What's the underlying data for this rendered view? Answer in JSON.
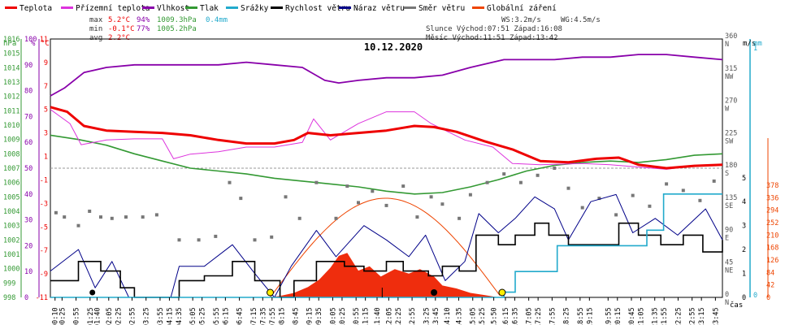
{
  "date": "10.12.2020",
  "legend": [
    {
      "label": "Teplota",
      "color": "#ee0000"
    },
    {
      "label": "Přízemní teplota",
      "color": "#dd33dd"
    },
    {
      "label": "Vlhkost",
      "color": "#8800aa"
    },
    {
      "label": "Tlak",
      "color": "#339933"
    },
    {
      "label": "Srážky",
      "color": "#22aacc"
    },
    {
      "label": "Rychlost větru",
      "color": "#000000"
    },
    {
      "label": "Náraz větru",
      "color": "#000088"
    },
    {
      "label": "Směr větru",
      "color": "#777777"
    },
    {
      "label": "Globální záření",
      "color": "#ee4400"
    }
  ],
  "stats": {
    "max_label": "max",
    "max_temp": "5.2°C",
    "max_hum": "94%",
    "max_press": "1009.3hPa",
    "max_rain": "0.4mm",
    "min_label": "min",
    "min_temp": "-0.1°C",
    "min_hum": "77%",
    "min_press": "1005.2hPa",
    "avg_label": "avg",
    "avg_temp": "2.2°C",
    "ws": "WS:3.2m/s",
    "wg": "WG:4.5m/s",
    "sun": "Slunce Východ:07:51  Západ:16:08",
    "moon": "Měsíc  Východ:11:51  Západ:13:42"
  },
  "axes": {
    "hpa_label": "hPa",
    "pct_label": "%",
    "degc_label": "°C",
    "ms_label": "m/s",
    "mm_label": "mm",
    "time_label": "čas",
    "hpa_ticks": [
      "998",
      "999",
      "1000",
      "1001",
      "1002",
      "1003",
      "1004",
      "1005",
      "1006",
      "1007",
      "1008",
      "1009",
      "1010",
      "1011",
      "1012",
      "1013",
      "1014",
      "1015",
      "1016"
    ],
    "pct_ticks": [
      "0",
      "10",
      "20",
      "30",
      "40",
      "50",
      "60",
      "70",
      "80",
      "90",
      "100"
    ],
    "temp_ticks": [
      "-11",
      "-9",
      "-7",
      "-5",
      "-3",
      "-1",
      "1",
      "3",
      "5",
      "7",
      "9",
      "11"
    ],
    "dir_ticks": [
      {
        "deg": "0",
        "lbl": "N"
      },
      {
        "deg": "45",
        "lbl": "NE"
      },
      {
        "deg": "90",
        "lbl": "E"
      },
      {
        "deg": "135",
        "lbl": "SE"
      },
      {
        "deg": "180",
        "lbl": "S"
      },
      {
        "deg": "225",
        "lbl": "SW"
      },
      {
        "deg": "270",
        "lbl": "W"
      },
      {
        "deg": "315",
        "lbl": "NW"
      },
      {
        "deg": "360",
        "lbl": "N"
      }
    ],
    "wind_ticks": [
      "0",
      "1",
      "2",
      "3",
      "4",
      "5"
    ],
    "rain_ticks": [
      "0",
      "1"
    ],
    "rad_ticks": [
      "0",
      "42",
      "84",
      "126",
      "168",
      "210",
      "252",
      "294",
      "336",
      "378"
    ],
    "time_ticks": [
      "00:10",
      "00:25",
      "00:55",
      "01:25",
      "01:40",
      "02:05",
      "02:25",
      "02:55",
      "03:25",
      "03:55",
      "04:15",
      "04:35",
      "05:05",
      "05:25",
      "05:55",
      "06:15",
      "06:45",
      "07:15",
      "07:35",
      "07:55",
      "08:15",
      "08:45",
      "09:15",
      "09:35",
      "10:05",
      "10:25",
      "10:55",
      "11:15",
      "11:40",
      "12:05",
      "12:25",
      "12:55",
      "13:25",
      "13:45",
      "14:10",
      "14:35",
      "15:05",
      "15:25",
      "15:50",
      "16:15",
      "16:35",
      "17:05",
      "17:25",
      "17:55",
      "18:25",
      "18:55",
      "19:15",
      "19:55",
      "20:15",
      "20:45",
      "21:05",
      "21:35",
      "21:55",
      "22:25",
      "22:55",
      "23:15",
      "23:45"
    ]
  },
  "chart_data": {
    "type": "line",
    "title": "10.12.2020",
    "x_unit": "hour",
    "series": [
      {
        "name": "Teplota",
        "unit": "°C",
        "points": [
          [
            0,
            5.2
          ],
          [
            0.6,
            4.8
          ],
          [
            1.2,
            3.6
          ],
          [
            2,
            3.2
          ],
          [
            3,
            3.1
          ],
          [
            4,
            3.0
          ],
          [
            5,
            2.8
          ],
          [
            6,
            2.4
          ],
          [
            7,
            2.1
          ],
          [
            8,
            2.1
          ],
          [
            8.7,
            2.4
          ],
          [
            9.2,
            3.0
          ],
          [
            10,
            2.8
          ],
          [
            11,
            3.0
          ],
          [
            12,
            3.2
          ],
          [
            13,
            3.6
          ],
          [
            13.7,
            3.5
          ],
          [
            14.5,
            3.1
          ],
          [
            15.5,
            2.3
          ],
          [
            16.5,
            1.6
          ],
          [
            17.5,
            0.6
          ],
          [
            18.5,
            0.5
          ],
          [
            19.5,
            0.8
          ],
          [
            20.3,
            0.9
          ],
          [
            21,
            0.3
          ],
          [
            22,
            0.0
          ],
          [
            23,
            0.2
          ],
          [
            24,
            0.3
          ]
        ]
      },
      {
        "name": "Přízemní teplota",
        "unit": "°C",
        "points": [
          [
            0,
            5.0
          ],
          [
            0.7,
            3.8
          ],
          [
            1.1,
            2.0
          ],
          [
            2,
            2.4
          ],
          [
            3,
            2.5
          ],
          [
            4,
            2.5
          ],
          [
            4.4,
            0.8
          ],
          [
            5,
            1.2
          ],
          [
            6,
            1.4
          ],
          [
            7,
            1.8
          ],
          [
            8,
            1.8
          ],
          [
            9,
            2.2
          ],
          [
            9.4,
            4.2
          ],
          [
            10,
            2.4
          ],
          [
            11,
            3.8
          ],
          [
            12,
            4.8
          ],
          [
            13,
            4.8
          ],
          [
            13.6,
            3.8
          ],
          [
            14.8,
            2.4
          ],
          [
            15.8,
            1.8
          ],
          [
            16.5,
            0.4
          ],
          [
            17.5,
            0.3
          ],
          [
            19,
            0.4
          ],
          [
            20,
            0.3
          ],
          [
            21,
            0.1
          ],
          [
            22,
            -0.1
          ],
          [
            23,
            0.2
          ],
          [
            24,
            0.3
          ]
        ]
      },
      {
        "name": "Vlhkost",
        "unit": "%",
        "points": [
          [
            0,
            78
          ],
          [
            0.5,
            81
          ],
          [
            1.2,
            87
          ],
          [
            2,
            89
          ],
          [
            3,
            90
          ],
          [
            4,
            90
          ],
          [
            5,
            90
          ],
          [
            6,
            90
          ],
          [
            7,
            91
          ],
          [
            8,
            90
          ],
          [
            9,
            89
          ],
          [
            9.8,
            84
          ],
          [
            10.3,
            83
          ],
          [
            11,
            84
          ],
          [
            12,
            85
          ],
          [
            13,
            85
          ],
          [
            14,
            86
          ],
          [
            15,
            89
          ],
          [
            16.2,
            92
          ],
          [
            17,
            92
          ],
          [
            18,
            92
          ],
          [
            19,
            93
          ],
          [
            20,
            93
          ],
          [
            21,
            94
          ],
          [
            22,
            94
          ],
          [
            23,
            93
          ],
          [
            24,
            92
          ]
        ]
      },
      {
        "name": "Tlak",
        "unit": "hPa",
        "points": [
          [
            0,
            1009.3
          ],
          [
            1,
            1009.0
          ],
          [
            2,
            1008.6
          ],
          [
            3,
            1008.0
          ],
          [
            4,
            1007.5
          ],
          [
            5,
            1007.0
          ],
          [
            6,
            1006.8
          ],
          [
            7,
            1006.6
          ],
          [
            8,
            1006.3
          ],
          [
            9,
            1006.1
          ],
          [
            10,
            1005.9
          ],
          [
            11,
            1005.7
          ],
          [
            12,
            1005.4
          ],
          [
            13,
            1005.2
          ],
          [
            14,
            1005.3
          ],
          [
            15,
            1005.7
          ],
          [
            16,
            1006.2
          ],
          [
            17,
            1006.8
          ],
          [
            18,
            1007.2
          ],
          [
            19,
            1007.4
          ],
          [
            20,
            1007.5
          ],
          [
            21,
            1007.4
          ],
          [
            22,
            1007.6
          ],
          [
            23,
            1007.9
          ],
          [
            24,
            1008.0
          ]
        ]
      },
      {
        "name": "Srážky",
        "unit": "mm",
        "points": [
          [
            0,
            0
          ],
          [
            16.1,
            0
          ],
          [
            16.2,
            0.02
          ],
          [
            16.6,
            0.1
          ],
          [
            17.7,
            0.1
          ],
          [
            18.1,
            0.2
          ],
          [
            20.3,
            0.2
          ],
          [
            21.3,
            0.26
          ],
          [
            21.9,
            0.4
          ],
          [
            24,
            0.4
          ]
        ]
      },
      {
        "name": "Rychlost větru",
        "unit": "m/s",
        "points": [
          [
            0,
            0.7
          ],
          [
            1,
            1.5
          ],
          [
            1.8,
            1.1
          ],
          [
            2.5,
            0.4
          ],
          [
            3,
            0
          ],
          [
            4.3,
            0
          ],
          [
            4.6,
            0.7
          ],
          [
            5.5,
            0.9
          ],
          [
            6.5,
            1.5
          ],
          [
            7.3,
            0.7
          ],
          [
            8.2,
            0
          ],
          [
            8.7,
            0.7
          ],
          [
            9.5,
            1.5
          ],
          [
            10.5,
            1.3
          ],
          [
            11.2,
            1.1
          ],
          [
            12,
            1.5
          ],
          [
            12.6,
            1.1
          ],
          [
            13.5,
            0.9
          ],
          [
            14,
            1.3
          ],
          [
            14.6,
            1.1
          ],
          [
            15.2,
            2.6
          ],
          [
            16,
            2.2
          ],
          [
            16.6,
            2.6
          ],
          [
            17.3,
            3.1
          ],
          [
            17.8,
            2.6
          ],
          [
            18.5,
            2.2
          ],
          [
            19.5,
            2.2
          ],
          [
            20.3,
            3.1
          ],
          [
            21,
            2.6
          ],
          [
            21.8,
            2.2
          ],
          [
            22.6,
            2.6
          ],
          [
            23.3,
            1.9
          ],
          [
            24,
            2.4
          ]
        ]
      },
      {
        "name": "Náraz větru",
        "unit": "m/s",
        "points": [
          [
            0,
            1.1
          ],
          [
            1,
            2.0
          ],
          [
            1.6,
            0.4
          ],
          [
            2.2,
            1.5
          ],
          [
            2.8,
            0
          ],
          [
            4.3,
            0
          ],
          [
            4.6,
            1.3
          ],
          [
            5.5,
            1.3
          ],
          [
            6.5,
            2.2
          ],
          [
            7.3,
            1.0
          ],
          [
            8.0,
            0
          ],
          [
            8.6,
            1.3
          ],
          [
            9.5,
            2.8
          ],
          [
            10.2,
            1.7
          ],
          [
            11.2,
            3.0
          ],
          [
            12,
            2.4
          ],
          [
            12.8,
            1.7
          ],
          [
            13.4,
            2.6
          ],
          [
            14.1,
            0.7
          ],
          [
            14.8,
            1.5
          ],
          [
            15.3,
            3.5
          ],
          [
            16,
            2.7
          ],
          [
            16.6,
            3.3
          ],
          [
            17.3,
            4.2
          ],
          [
            18,
            3.7
          ],
          [
            18.5,
            2.4
          ],
          [
            19.3,
            4.0
          ],
          [
            20.2,
            4.3
          ],
          [
            20.8,
            2.7
          ],
          [
            21.6,
            3.3
          ],
          [
            22.4,
            2.6
          ],
          [
            23.4,
            3.7
          ],
          [
            24,
            2.4
          ]
        ]
      },
      {
        "name": "Směr větru",
        "unit": "°",
        "type": "scatter",
        "points": [
          [
            0.2,
            118
          ],
          [
            0.5,
            112
          ],
          [
            1.0,
            100
          ],
          [
            1.4,
            120
          ],
          [
            1.8,
            112
          ],
          [
            2.2,
            110
          ],
          [
            2.7,
            112
          ],
          [
            3.3,
            112
          ],
          [
            3.8,
            115
          ],
          [
            4.6,
            80
          ],
          [
            5.3,
            80
          ],
          [
            5.9,
            85
          ],
          [
            6.4,
            160
          ],
          [
            6.8,
            138
          ],
          [
            7.3,
            80
          ],
          [
            7.9,
            84
          ],
          [
            8.4,
            140
          ],
          [
            8.9,
            110
          ],
          [
            9.5,
            160
          ],
          [
            10.2,
            110
          ],
          [
            10.6,
            155
          ],
          [
            11.0,
            132
          ],
          [
            11.5,
            148
          ],
          [
            12.0,
            128
          ],
          [
            12.6,
            155
          ],
          [
            13.1,
            112
          ],
          [
            13.6,
            140
          ],
          [
            14.0,
            130
          ],
          [
            14.6,
            110
          ],
          [
            15.0,
            143
          ],
          [
            15.6,
            160
          ],
          [
            16.2,
            172
          ],
          [
            16.8,
            160
          ],
          [
            17.4,
            170
          ],
          [
            18.0,
            180
          ],
          [
            18.5,
            152
          ],
          [
            19.0,
            125
          ],
          [
            19.6,
            138
          ],
          [
            20.2,
            115
          ],
          [
            20.8,
            142
          ],
          [
            21.4,
            127
          ],
          [
            22.0,
            158
          ],
          [
            22.6,
            149
          ],
          [
            23.2,
            135
          ],
          [
            23.7,
            162
          ]
        ]
      },
      {
        "name": "Globální záření",
        "unit": "W/m²",
        "type": "area",
        "points": [
          [
            7.8,
            0
          ],
          [
            8.2,
            5
          ],
          [
            8.7,
            15
          ],
          [
            9.2,
            35
          ],
          [
            9.6,
            60
          ],
          [
            10.0,
            100
          ],
          [
            10.3,
            140
          ],
          [
            10.6,
            150
          ],
          [
            11.0,
            90
          ],
          [
            11.4,
            105
          ],
          [
            11.8,
            70
          ],
          [
            12.3,
            95
          ],
          [
            12.8,
            80
          ],
          [
            13.2,
            95
          ],
          [
            13.7,
            70
          ],
          [
            14.0,
            40
          ],
          [
            14.5,
            30
          ],
          [
            15.0,
            15
          ],
          [
            15.5,
            8
          ],
          [
            16.0,
            0
          ]
        ]
      }
    ]
  }
}
